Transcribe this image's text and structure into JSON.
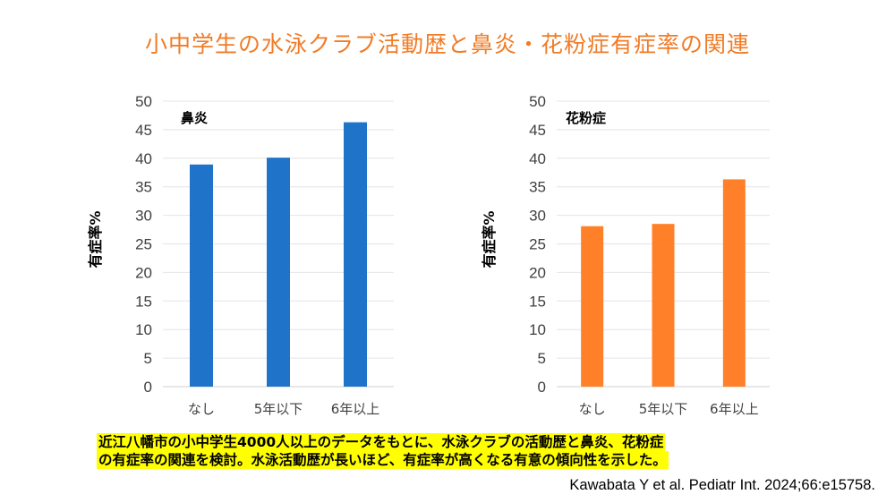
{
  "title": "小中学生の水泳クラブ活動歴と鼻炎・花粉症有症率の関連",
  "summary": {
    "line1": "近江八幡市の小中学生4000人以上のデータをもとに、水泳クラブの活動歴と鼻炎、花粉症",
    "line2": "の有症率の関連を検討。水泳活動歴が長いほど、有症率が高くなる有意の傾向性を示した。"
  },
  "citation": "Kawabata Y et al. Pediatr Int. 2024;66:e15758.",
  "chart_data": [
    {
      "type": "bar",
      "title": "鼻炎",
      "categories": [
        "なし",
        "5年以下",
        "6年以上"
      ],
      "values": [
        38.9,
        40.1,
        46.3
      ],
      "xlabel": "",
      "ylabel": "有症率%",
      "ylim": [
        0,
        50
      ],
      "yticks": [
        "0",
        "5",
        "10",
        "15",
        "20",
        "25",
        "30",
        "35",
        "40",
        "45",
        "50"
      ],
      "grid": true,
      "color": "#1F73C8"
    },
    {
      "type": "bar",
      "title": "花粉症",
      "categories": [
        "なし",
        "5年以下",
        "6年以上"
      ],
      "values": [
        28.1,
        28.5,
        36.3
      ],
      "xlabel": "",
      "ylabel": "有症率%",
      "ylim": [
        0,
        50
      ],
      "yticks": [
        "0",
        "5",
        "10",
        "15",
        "20",
        "25",
        "30",
        "35",
        "40",
        "45",
        "50"
      ],
      "grid": true,
      "color": "#FF8028"
    }
  ]
}
